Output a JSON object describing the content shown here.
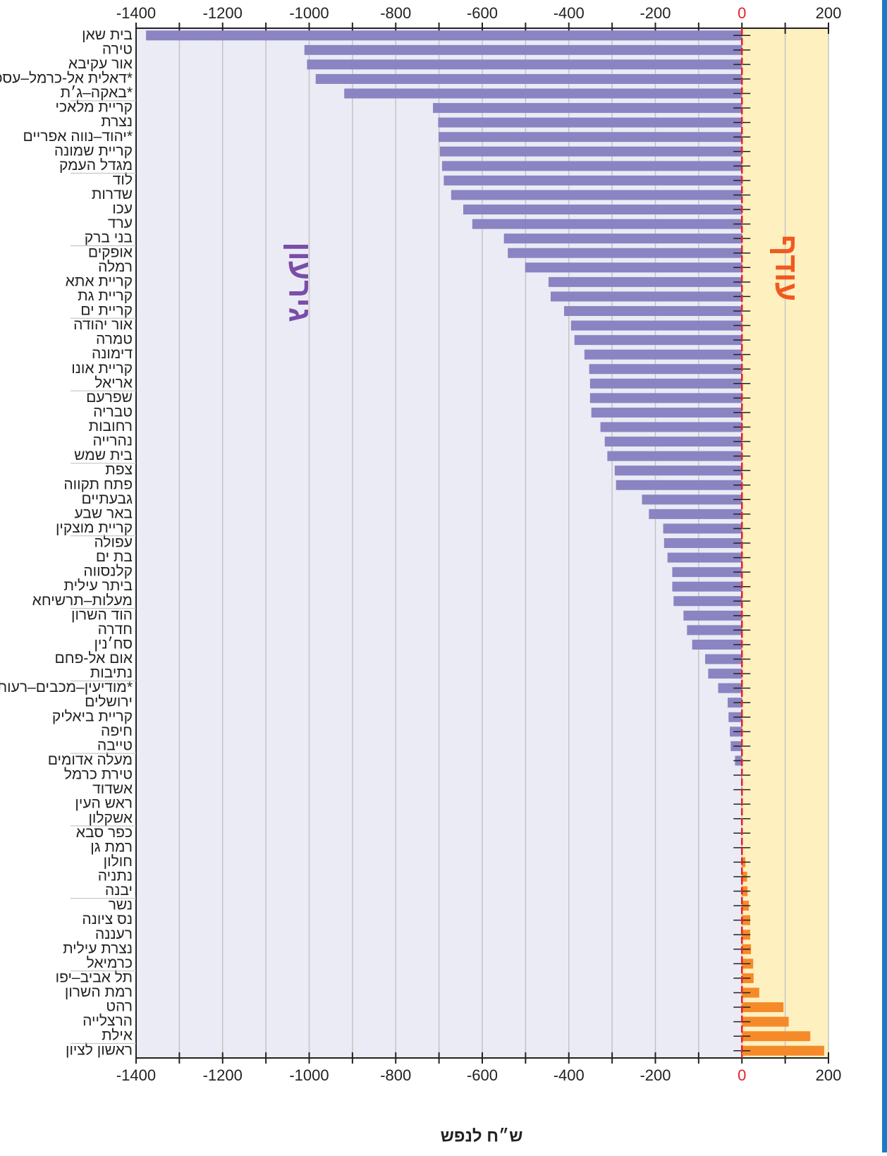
{
  "chart_data": {
    "type": "bar",
    "orientation": "horizontal",
    "x_label": "ש״ח לנפש",
    "annotations": [
      "גירעון",
      "עודף"
    ],
    "categories": [
      "בית שאן",
      "טירה",
      "אור עקיבא",
      "דאלית אל-כרמל–עספיא*",
      "באקה–ג׳ת*",
      "קריית מלאכי",
      "נצרת",
      "יהוד–נווה אפריים*",
      "קריית שמונה",
      "מגדל העמק",
      "לוד",
      "שדרות",
      "עכו",
      "ערד",
      "בני ברק",
      "אופקים",
      "רמלה",
      "קריית אתא",
      "קריית גת",
      "קריית ים",
      "אור יהודה",
      "טמרה",
      "דימונה",
      "קריית אונו",
      "אריאל",
      "שפרעם",
      "טבריה",
      "רחובות",
      "נהרייה",
      "בית שמש",
      "צפת",
      "פתח תקווה",
      "גבעתיים",
      "באר שבע",
      "קריית מוצקין",
      "עפולה",
      "בת ים",
      "קלנסווה",
      "ביתר עילית",
      "מעלות–תרשיחא",
      "הוד השרון",
      "חדרה",
      "סח׳נין",
      "אום אל-פחם",
      "נתיבות",
      "מודיעין–מכבים–רעות*",
      "ירושלים",
      "קריית ביאליק",
      "חיפה",
      "טייבה",
      "מעלה אדומים",
      "טירת כרמל",
      "אשדוד",
      "ראש העין",
      "אשקלון",
      "כפר סבא",
      "רמת גן",
      "חולון",
      "נתניה",
      "יבנה",
      "נשר",
      "נס ציונה",
      "רעננה",
      "נצרת עילית",
      "כרמיאל",
      "תל אביב–יפו",
      "רמת השרון",
      "רהט",
      "הרצלייה",
      "אילת",
      "ראשון לציון"
    ],
    "values": [
      -1377,
      -1011,
      -1005,
      -985,
      -919,
      -714,
      -702,
      -701,
      -698,
      -693,
      -689,
      -672,
      -644,
      -623,
      -550,
      -541,
      -501,
      -447,
      -442,
      -411,
      -395,
      -387,
      -364,
      -353,
      -351,
      -351,
      -348,
      -327,
      -317,
      -311,
      -294,
      -291,
      -231,
      -215,
      -182,
      -180,
      -172,
      -161,
      -161,
      -158,
      -135,
      -127,
      -115,
      -85,
      -78,
      -55,
      -33,
      -31,
      -28,
      -26,
      -16,
      -2,
      -1,
      -1,
      0,
      0,
      1,
      8,
      12,
      13,
      16,
      19,
      19,
      21,
      26,
      27,
      40,
      96,
      108,
      158,
      190
    ],
    "negative_color": "#8a84c2",
    "positive_color": "#f58a2a",
    "xlim": [
      -1400,
      200
    ],
    "xticks": [
      -1400,
      -1200,
      -1000,
      -800,
      -600,
      -400,
      -200,
      0,
      200
    ],
    "xminor": [
      -1300,
      -1100,
      -900,
      -700,
      -500,
      -300,
      -100,
      100
    ],
    "grid": true
  }
}
